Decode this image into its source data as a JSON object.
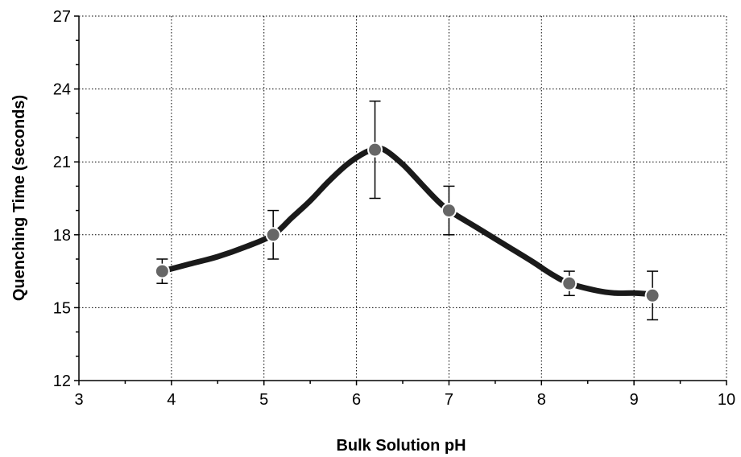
{
  "chart_data": {
    "type": "scatter",
    "title": "",
    "xlabel": "Bulk Solution pH",
    "ylabel": "Quenching Time (seconds)",
    "xlim": [
      3,
      10
    ],
    "ylim": [
      12,
      27
    ],
    "xticks": [
      3,
      4,
      5,
      6,
      7,
      8,
      9,
      10
    ],
    "yticks": [
      12,
      15,
      18,
      21,
      24,
      27
    ],
    "grid": true,
    "marker_color": "#666666",
    "line_color": "#1a1a1a",
    "series": [
      {
        "points": [
          {
            "x": 3.9,
            "y": 16.5,
            "err_low": 16.0,
            "err_high": 17.0
          },
          {
            "x": 5.1,
            "y": 18.0,
            "err_low": 17.0,
            "err_high": 19.0
          },
          {
            "x": 6.2,
            "y": 21.5,
            "err_low": 19.5,
            "err_high": 23.5
          },
          {
            "x": 7.0,
            "y": 19.0,
            "err_low": 18.0,
            "err_high": 20.0
          },
          {
            "x": 8.3,
            "y": 16.0,
            "err_low": 15.5,
            "err_high": 16.5
          },
          {
            "x": 9.2,
            "y": 15.5,
            "err_low": 14.5,
            "err_high": 16.5
          }
        ],
        "trend_curve": [
          [
            3.9,
            16.5
          ],
          [
            4.2,
            16.8
          ],
          [
            4.5,
            17.1
          ],
          [
            4.8,
            17.5
          ],
          [
            5.1,
            18.0
          ],
          [
            5.3,
            18.7
          ],
          [
            5.5,
            19.4
          ],
          [
            5.7,
            20.2
          ],
          [
            5.9,
            20.9
          ],
          [
            6.1,
            21.4
          ],
          [
            6.2,
            21.5
          ],
          [
            6.3,
            21.5
          ],
          [
            6.5,
            20.9
          ],
          [
            6.7,
            20.1
          ],
          [
            6.85,
            19.5
          ],
          [
            7.0,
            19.0
          ],
          [
            7.3,
            18.3
          ],
          [
            7.6,
            17.6
          ],
          [
            7.9,
            16.9
          ],
          [
            8.1,
            16.4
          ],
          [
            8.3,
            16.0
          ],
          [
            8.6,
            15.7
          ],
          [
            8.8,
            15.6
          ],
          [
            9.0,
            15.6
          ],
          [
            9.2,
            15.55
          ]
        ]
      }
    ]
  }
}
